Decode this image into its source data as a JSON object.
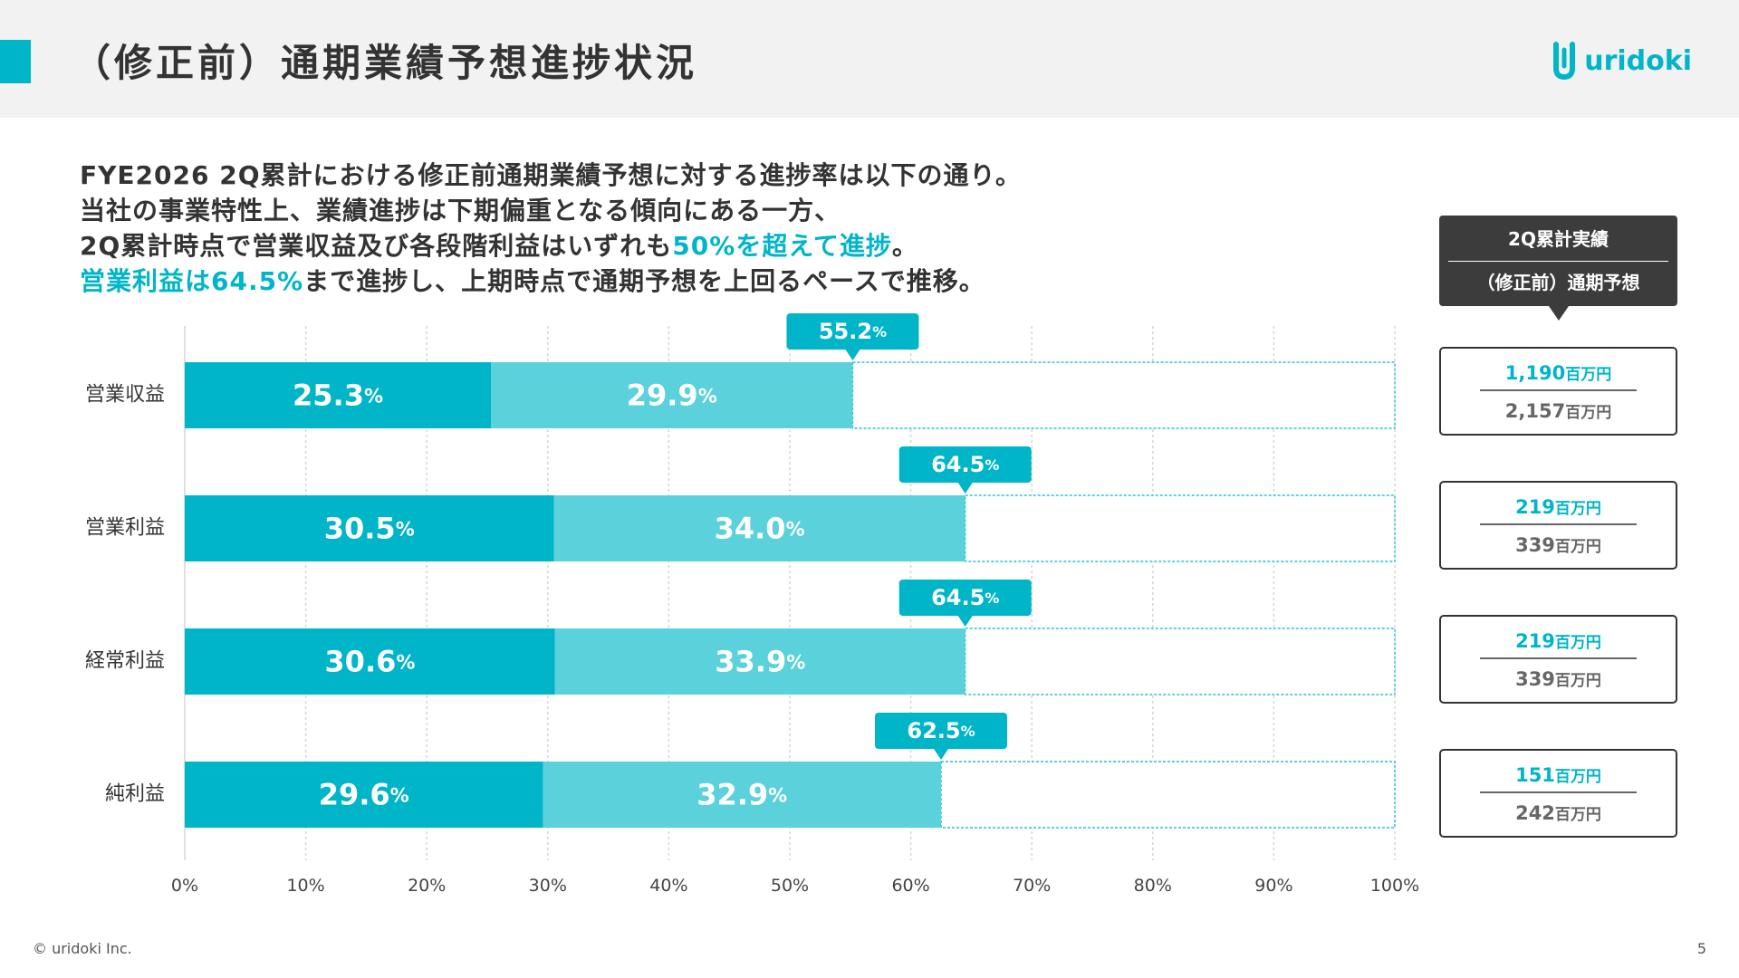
{
  "header": {
    "title": "（修正前）通期業績予想進捗状況",
    "logo_text": "uridoki",
    "accent_color": "#00b5c8"
  },
  "summary": {
    "line1": "FYE2026 2Q累計における修正前通期業績予想に対する進捗率は以下の通り。",
    "line2": "当社の事業特性上、業績進捗は下期偏重となる傾向にある一方、",
    "line3_prefix": "2Q累計時点で営業収益及び各段階利益はいずれも",
    "line3_highlight": "50%を超えて進捗",
    "line3_suffix": "。",
    "line4_highlight": "営業利益は64.5%",
    "line4_suffix": "まで進捗し、上期時点で通期予想を上回るペースで推移。"
  },
  "legend": {
    "top": "2Q累計実績",
    "bottom": "（修正前）通期予想"
  },
  "amounts": [
    {
      "actual": "1,190",
      "forecast": "2,157",
      "unit": "百万円"
    },
    {
      "actual": "219",
      "forecast": "339",
      "unit": "百万円"
    },
    {
      "actual": "219",
      "forecast": "339",
      "unit": "百万円"
    },
    {
      "actual": "151",
      "forecast": "242",
      "unit": "百万円"
    }
  ],
  "chart_data": {
    "type": "bar",
    "orientation": "horizontal",
    "stacked": true,
    "categories": [
      "営業収益",
      "営業利益",
      "経常利益",
      "純利益"
    ],
    "series": [
      {
        "values": [
          25.3,
          30.5,
          30.6,
          29.6
        ],
        "color": "#00b5c8"
      },
      {
        "values": [
          29.9,
          34.0,
          33.9,
          32.9
        ],
        "color": "#5bd1dc"
      }
    ],
    "totals": [
      55.2,
      64.5,
      64.5,
      62.5
    ],
    "xlim": [
      0,
      100
    ],
    "x_ticks": [
      "0%",
      "10%",
      "20%",
      "30%",
      "40%",
      "50%",
      "60%",
      "70%",
      "80%",
      "90%",
      "100%"
    ],
    "percent_suffix": "%",
    "grid": true,
    "remaining_outline_color": "#00b5c8"
  },
  "footer": {
    "copyright": "© uridoki Inc.",
    "page_number": "5"
  }
}
